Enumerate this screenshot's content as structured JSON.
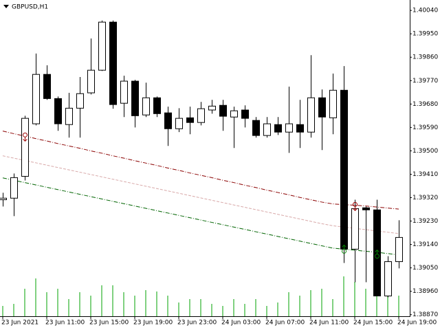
{
  "chart_data": {
    "type": "candlestick",
    "title": "GBPUSD,H1",
    "categories": [
      "23 Jun 2021",
      null,
      null,
      null,
      "23 Jun 11:00",
      null,
      null,
      null,
      "23 Jun 15:00",
      null,
      null,
      null,
      "23 Jun 19:00",
      null,
      null,
      null,
      "23 Jun 23:00",
      null,
      null,
      null,
      "24 Jun 03:00",
      null,
      null,
      null,
      "24 Jun 07:00",
      null,
      null,
      null,
      "24 Jun 11:00",
      null,
      null,
      null,
      "24 Jun 15:00",
      null,
      null,
      null,
      "24 Jun 19:00"
    ],
    "open": [
      1.39312,
      1.39318,
      1.39402,
      1.39604,
      1.39794,
      1.39701,
      1.39601,
      1.39664,
      1.39723,
      1.3981,
      1.39995,
      1.39683,
      1.39768,
      1.39638,
      1.39704,
      1.39646,
      1.39585,
      1.39627,
      1.39609,
      1.39657,
      1.39675,
      1.3963,
      1.39657,
      1.39617,
      1.39559,
      1.39601,
      1.39572,
      1.39601,
      1.39572,
      1.39704,
      1.39627,
      1.39733,
      1.39122,
      1.39281,
      1.39273,
      1.38942,
      1.39074
    ],
    "high": [
      1.39339,
      1.39413,
      1.39635,
      1.39874,
      1.39829,
      1.39709,
      1.39723,
      1.39784,
      1.39932,
      1.40001,
      1.40001,
      1.39789,
      1.39773,
      1.39762,
      1.39709,
      1.3967,
      1.39664,
      1.3967,
      1.39688,
      1.39696,
      1.39696,
      1.3967,
      1.39675,
      1.3963,
      1.3963,
      1.3963,
      1.39747,
      1.39696,
      1.39868,
      1.39736,
      1.39797,
      1.39826,
      1.39312,
      1.39286,
      1.39312,
      1.39095,
      1.39233
    ],
    "low": [
      1.39286,
      1.39249,
      1.39386,
      1.39598,
      1.39696,
      1.39577,
      1.39551,
      1.39551,
      1.39717,
      1.39807,
      1.39662,
      1.3963,
      1.3959,
      1.3963,
      1.3963,
      1.39519,
      1.39572,
      1.39564,
      1.39598,
      1.39643,
      1.39577,
      1.39511,
      1.3959,
      1.39551,
      1.39551,
      1.39561,
      1.39492,
      1.39511,
      1.39551,
      1.39503,
      1.39564,
      1.39069,
      1.38995,
      1.38995,
      1.38942,
      1.38937,
      1.39048
    ],
    "close": [
      1.39318,
      1.39397,
      1.39625,
      1.39794,
      1.39701,
      1.39604,
      1.39664,
      1.3972,
      1.3981,
      1.39995,
      1.39678,
      1.39768,
      1.39635,
      1.39704,
      1.39643,
      1.39585,
      1.39625,
      1.39609,
      1.39662,
      1.39672,
      1.39633,
      1.39654,
      1.39625,
      1.39559,
      1.39604,
      1.39572,
      1.39604,
      1.39572,
      1.39704,
      1.3963,
      1.39733,
      1.39122,
      1.39278,
      1.39273,
      1.38942,
      1.39074,
      1.39167
    ],
    "volume": [
      15,
      18,
      40,
      55,
      35,
      40,
      25,
      35,
      30,
      45,
      45,
      35,
      30,
      38,
      36,
      30,
      20,
      25,
      25,
      18,
      15,
      25,
      18,
      25,
      15,
      20,
      35,
      30,
      38,
      40,
      25,
      58,
      50,
      40,
      45,
      35,
      30
    ],
    "volume_color": "#00a000",
    "up_color": "#ffffff",
    "down_color": "#000000",
    "series": [
      {
        "color": "#8b0000",
        "values": [
          1.39576,
          1.39566,
          1.39557,
          1.39547,
          1.39538,
          1.39528,
          1.39519,
          1.3951,
          1.395,
          1.39491,
          1.39481,
          1.39472,
          1.39462,
          1.39453,
          1.39444,
          1.39434,
          1.39425,
          1.39415,
          1.39406,
          1.39397,
          1.39387,
          1.39378,
          1.39368,
          1.39359,
          1.39349,
          1.3934,
          1.39331,
          1.39321,
          1.39312,
          1.39303,
          1.39296,
          1.39293,
          1.39291,
          1.39288,
          1.39284,
          1.3928,
          1.39276
        ]
      },
      {
        "color": "#d8a8a8",
        "values": [
          1.39481,
          1.39472,
          1.39463,
          1.39454,
          1.39445,
          1.39436,
          1.39427,
          1.39418,
          1.39409,
          1.394,
          1.39391,
          1.39382,
          1.39373,
          1.39364,
          1.39355,
          1.39346,
          1.39337,
          1.39328,
          1.39319,
          1.3931,
          1.39301,
          1.39292,
          1.39283,
          1.39274,
          1.39265,
          1.39256,
          1.39247,
          1.39238,
          1.39229,
          1.3922,
          1.39212,
          1.39207,
          1.39202,
          1.39197,
          1.39192,
          1.39187,
          1.39182
        ]
      },
      {
        "color": "#006400",
        "values": [
          1.39396,
          1.39387,
          1.39378,
          1.39369,
          1.3936,
          1.39351,
          1.39342,
          1.39333,
          1.39324,
          1.39315,
          1.39306,
          1.39297,
          1.39288,
          1.39279,
          1.3927,
          1.39261,
          1.39252,
          1.39243,
          1.39234,
          1.39225,
          1.39216,
          1.39207,
          1.39198,
          1.39189,
          1.3918,
          1.39171,
          1.39162,
          1.39153,
          1.39144,
          1.39135,
          1.39126,
          1.39122,
          1.39118,
          1.39114,
          1.3911,
          1.39105,
          1.391
        ]
      }
    ],
    "down_signals": [
      null,
      null,
      1.39561,
      null,
      null,
      null,
      null,
      null,
      null,
      null,
      null,
      null,
      null,
      null,
      null,
      null,
      null,
      null,
      null,
      null,
      null,
      null,
      null,
      null,
      null,
      null,
      null,
      null,
      null,
      null,
      null,
      null,
      1.39294,
      null,
      null,
      null,
      null
    ],
    "down_signal_color": "#a00000",
    "up_signals": [
      null,
      null,
      null,
      null,
      null,
      null,
      null,
      null,
      null,
      null,
      null,
      null,
      null,
      null,
      null,
      null,
      null,
      null,
      null,
      null,
      null,
      null,
      null,
      null,
      null,
      null,
      null,
      null,
      null,
      null,
      null,
      1.39114,
      null,
      null,
      1.39095,
      null,
      null
    ],
    "up_signal_color": "#008000",
    "ylim": [
      1.38864,
      1.4008
    ],
    "yticks": [
      {
        "value": 1.4004,
        "label": "1.40040"
      },
      {
        "value": 1.3995,
        "label": "1.39950"
      },
      {
        "value": 1.3986,
        "label": "1.39860"
      },
      {
        "value": 1.3977,
        "label": "1.39770"
      },
      {
        "value": 1.3968,
        "label": "1.39680"
      },
      {
        "value": 1.3959,
        "label": "1.39590"
      },
      {
        "value": 1.395,
        "label": "1.39500"
      },
      {
        "value": 1.3941,
        "label": "1.39410"
      },
      {
        "value": 1.3932,
        "label": "1.39320"
      },
      {
        "value": 1.3923,
        "label": "1.39230"
      },
      {
        "value": 1.3914,
        "label": "1.39140"
      },
      {
        "value": 1.3905,
        "label": "1.39050"
      },
      {
        "value": 1.3896,
        "label": "1.38960"
      },
      {
        "value": 1.3887,
        "label": "1.38870"
      }
    ]
  }
}
